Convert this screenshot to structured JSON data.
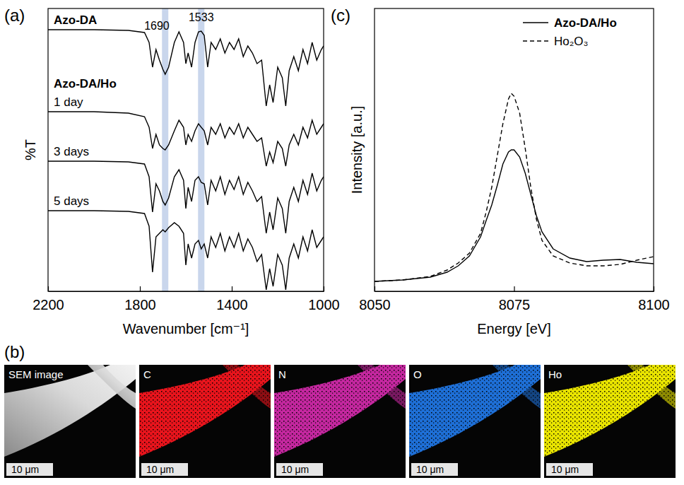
{
  "chart_data": [
    {
      "type": "line",
      "title": "(a)",
      "x_label": "Wavenumber [cm⁻¹]",
      "y_label": "%T",
      "x": [
        2200,
        2000,
        1850,
        1780,
        1760,
        1745,
        1730,
        1715,
        1700,
        1690,
        1675,
        1650,
        1630,
        1610,
        1600,
        1590,
        1575,
        1560,
        1545,
        1533,
        1520,
        1505,
        1490,
        1470,
        1450,
        1430,
        1410,
        1390,
        1370,
        1350,
        1330,
        1310,
        1290,
        1270,
        1250,
        1235,
        1220,
        1200,
        1180,
        1165,
        1150,
        1130,
        1110,
        1090,
        1070,
        1050,
        1030,
        1010,
        1000
      ],
      "xlim": [
        2200,
        1000
      ],
      "xticks": [
        2200,
        1800,
        1400,
        1000
      ],
      "ylim": [
        0,
        400
      ],
      "tick_labels": "x",
      "group_label": "Azo-DA/Ho",
      "bands": [
        1690,
        1533
      ],
      "series": [
        {
          "name": "Azo-DA",
          "color": "#000000",
          "line_style": "solid",
          "values": [
            370,
            370,
            369,
            366,
            352,
            317,
            342,
            327,
            314,
            307,
            317,
            352,
            367,
            352,
            322,
            337,
            317,
            352,
            367,
            368,
            362,
            317,
            352,
            342,
            357,
            337,
            352,
            342,
            357,
            332,
            347,
            337,
            322,
            327,
            262,
            292,
            267,
            317,
            302,
            262,
            312,
            332,
            312,
            342,
            322,
            352,
            327,
            342,
            347
          ]
        },
        {
          "name": "1 day",
          "color": "#000000",
          "line_style": "solid",
          "values": [
            254,
            254,
            252,
            247,
            232,
            202,
            222,
            207,
            202,
            200,
            207,
            227,
            242,
            232,
            207,
            222,
            212,
            227,
            237,
            232,
            227,
            207,
            232,
            222,
            237,
            217,
            232,
            222,
            237,
            217,
            232,
            222,
            212,
            217,
            177,
            197,
            182,
            212,
            202,
            177,
            207,
            222,
            207,
            232,
            217,
            242,
            222,
            232,
            237
          ]
        },
        {
          "name": "3 days",
          "color": "#000000",
          "line_style": "solid",
          "values": [
            184,
            184,
            183,
            180,
            162,
            112,
            152,
            142,
            127,
            122,
            132,
            162,
            172,
            157,
            117,
            147,
            127,
            157,
            162,
            154,
            152,
            122,
            157,
            142,
            162,
            137,
            157,
            144,
            162,
            137,
            154,
            142,
            127,
            134,
            82,
            112,
            87,
            132,
            117,
            82,
            127,
            147,
            127,
            157,
            137,
            167,
            142,
            157,
            162
          ]
        },
        {
          "name": "5 days",
          "color": "#000000",
          "line_style": "solid",
          "values": [
            114,
            114,
            113,
            110,
            92,
            27,
            77,
            82,
            87,
            84,
            90,
            97,
            92,
            82,
            37,
            67,
            47,
            67,
            72,
            60,
            67,
            47,
            77,
            62,
            82,
            57,
            77,
            62,
            82,
            57,
            74,
            62,
            42,
            52,
            2,
            32,
            7,
            52,
            37,
            2,
            47,
            67,
            47,
            77,
            57,
            87,
            62,
            72,
            77
          ]
        }
      ]
    },
    {
      "type": "line",
      "title": "(c)",
      "x_label": "Energy [eV]",
      "y_label": "Intensity [a.u.]",
      "x": [
        8050,
        8055,
        8060,
        8063,
        8065,
        8067,
        8069,
        8070,
        8071,
        8072,
        8073,
        8074,
        8074.5,
        8075,
        8076,
        8077,
        8078,
        8079,
        8080,
        8082,
        8085,
        8088,
        8091,
        8094,
        8097,
        8100
      ],
      "xlim": [
        8050,
        8100
      ],
      "xticks": [
        8050,
        8075,
        8100
      ],
      "ylim": [
        0,
        400
      ],
      "tick_labels": "x",
      "legend": "upper right",
      "series": [
        {
          "name": "Azo-DA/Ho",
          "color": "#000000",
          "line_style": "solid",
          "values": [
            14,
            16,
            20,
            27,
            36,
            50,
            77,
            100,
            122,
            150,
            180,
            197,
            200,
            200,
            190,
            167,
            137,
            107,
            84,
            60,
            47,
            42,
            44,
            45,
            41,
            39
          ]
        },
        {
          "name": "Ho₂O₃",
          "color": "#000000",
          "line_style": "dashed",
          "values": [
            14,
            16,
            21,
            30,
            40,
            54,
            82,
            112,
            147,
            192,
            237,
            272,
            280,
            276,
            252,
            202,
            147,
            102,
            72,
            50,
            40,
            36,
            36,
            38,
            44,
            49
          ]
        }
      ]
    }
  ],
  "panel_b": {
    "title": "(b)",
    "tiles": [
      {
        "title": "SEM image",
        "scale_bar": "10 μm",
        "color": "#d9d9d9"
      },
      {
        "title": "C",
        "scale_bar": "10 μm",
        "color": "#e8141c"
      },
      {
        "title": "N",
        "scale_bar": "10 μm",
        "color": "#c4279f"
      },
      {
        "title": "O",
        "scale_bar": "10 μm",
        "color": "#1e6fd6"
      },
      {
        "title": "Ho",
        "scale_bar": "10 μm",
        "color": "#e9e400"
      }
    ]
  }
}
